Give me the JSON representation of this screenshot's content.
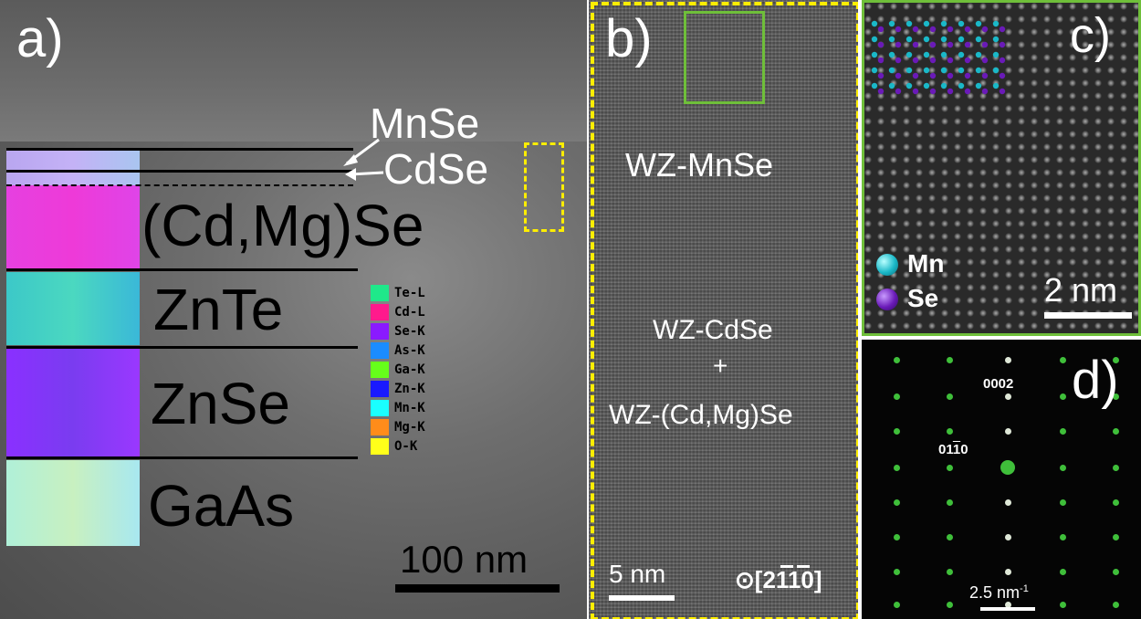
{
  "panel_a": {
    "label": "a)",
    "layers": [
      "MnSe",
      "CdSe",
      "(Cd,Mg)Se",
      "ZnTe",
      "ZnSe",
      "GaAs"
    ],
    "scale": "100 nm",
    "legend": [
      {
        "name": "Te-L",
        "color": "#1fe88a"
      },
      {
        "name": "Cd-L",
        "color": "#ff1a8c"
      },
      {
        "name": "Se-K",
        "color": "#8a1aff"
      },
      {
        "name": "As-K",
        "color": "#1a8cff"
      },
      {
        "name": "Ga-K",
        "color": "#66ff1a"
      },
      {
        "name": "Zn-K",
        "color": "#1a1aff"
      },
      {
        "name": "Mn-K",
        "color": "#1affff"
      },
      {
        "name": "Mg-K",
        "color": "#ff8c1a"
      },
      {
        "name": "O-K",
        "color": "#ffff1a"
      }
    ],
    "map_colors": [
      "#c0a8f0",
      "#e83ce0",
      "#3fd1c8",
      "#8a3cff",
      "#b8f0d0"
    ]
  },
  "panel_b": {
    "label": "b)",
    "top_text": "WZ-MnSe",
    "mid_text1": "WZ-CdSe",
    "plus": "+",
    "mid_text2": "WZ-(Cd,Mg)Se",
    "scale": "5 nm",
    "zone_axis": "⊙[2110]",
    "frame_color": "#ffee00",
    "box_color": "#6fbf3a"
  },
  "panel_c": {
    "label": "c)",
    "atoms": [
      {
        "name": "Mn",
        "color": "#1ab8c8"
      },
      {
        "name": "Se",
        "color": "#6a1ab8"
      }
    ],
    "scale": "2 nm",
    "frame_color": "#6fbf3a"
  },
  "panel_d": {
    "label": "d)",
    "spot1": "0002",
    "spot2": "01",
    "spot2_bar": "1",
    "spot2_end": "0",
    "scale_num": "2.5 nm",
    "scale_exp": "-1",
    "spot_color": "#3fbf3a"
  }
}
